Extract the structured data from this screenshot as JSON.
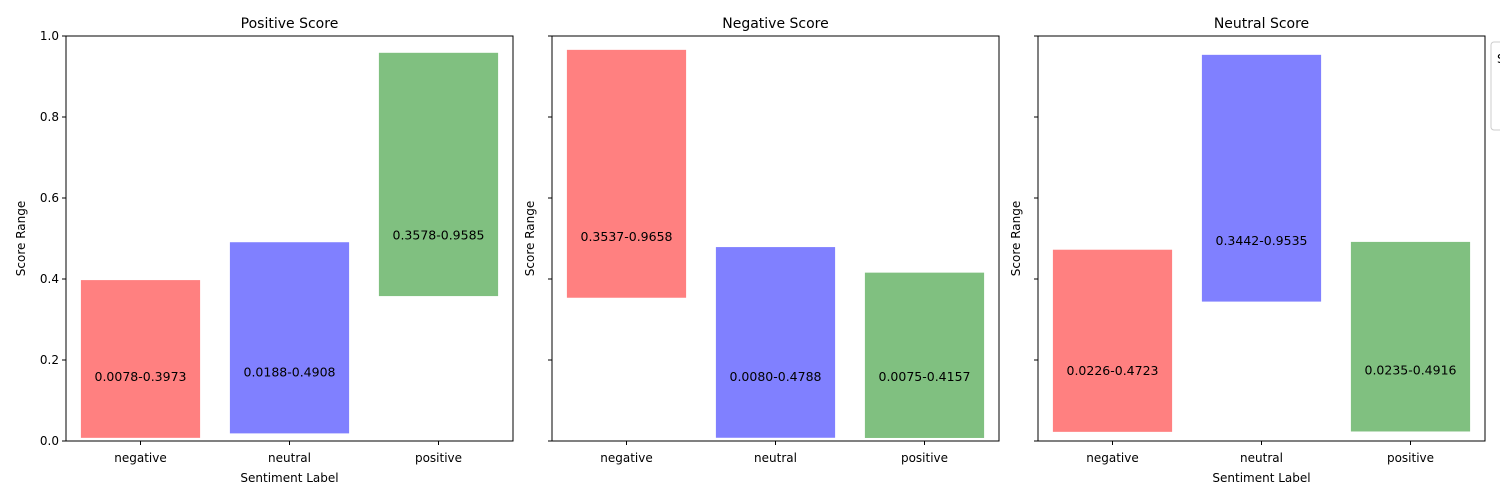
{
  "chart_data": [
    {
      "type": "bar",
      "title": "Positive Score",
      "xlabel": "Sentiment Label",
      "ylabel": "Score Range",
      "ylim": [
        0,
        1
      ],
      "yticks": [
        "0.0",
        "0.2",
        "0.4",
        "0.6",
        "0.8",
        "1.0"
      ],
      "show_ytick_labels": true,
      "categories": [
        "negative",
        "neutral",
        "positive"
      ],
      "bars": [
        {
          "low": 0.0078,
          "high": 0.3973,
          "label": "0.0078-0.3973",
          "color": "#ff8080"
        },
        {
          "low": 0.0188,
          "high": 0.4908,
          "label": "0.0188-0.4908",
          "color": "#8080ff"
        },
        {
          "low": 0.3578,
          "high": 0.9585,
          "label": "0.3578-0.9585",
          "color": "#80c080"
        }
      ]
    },
    {
      "type": "bar",
      "title": "Negative Score",
      "xlabel": "",
      "ylabel": "Score Range",
      "ylim": [
        0,
        1
      ],
      "yticks": [
        "0.0",
        "0.2",
        "0.4",
        "0.6",
        "0.8",
        "1.0"
      ],
      "show_ytick_labels": false,
      "categories": [
        "negative",
        "neutral",
        "positive"
      ],
      "bars": [
        {
          "low": 0.3537,
          "high": 0.9658,
          "label": "0.3537-0.9658",
          "color": "#ff8080"
        },
        {
          "low": 0.008,
          "high": 0.4788,
          "label": "0.0080-0.4788",
          "color": "#8080ff"
        },
        {
          "low": 0.0075,
          "high": 0.4157,
          "label": "0.0075-0.4157",
          "color": "#80c080"
        }
      ]
    },
    {
      "type": "bar",
      "title": "Neutral Score",
      "xlabel": "Sentiment Label",
      "ylabel": "Score Range",
      "ylim": [
        0,
        1
      ],
      "yticks": [
        "0.0",
        "0.2",
        "0.4",
        "0.6",
        "0.8",
        "1.0"
      ],
      "show_ytick_labels": false,
      "categories": [
        "negative",
        "neutral",
        "positive"
      ],
      "bars": [
        {
          "low": 0.0226,
          "high": 0.4723,
          "label": "0.0226-0.4723",
          "color": "#ff8080"
        },
        {
          "low": 0.3442,
          "high": 0.9535,
          "label": "0.3442-0.9535",
          "color": "#8080ff"
        },
        {
          "low": 0.0235,
          "high": 0.4916,
          "label": "0.0235-0.4916",
          "color": "#80c080"
        }
      ]
    }
  ],
  "legend": {
    "placement": "right (clipped)",
    "visible_text": "S"
  }
}
